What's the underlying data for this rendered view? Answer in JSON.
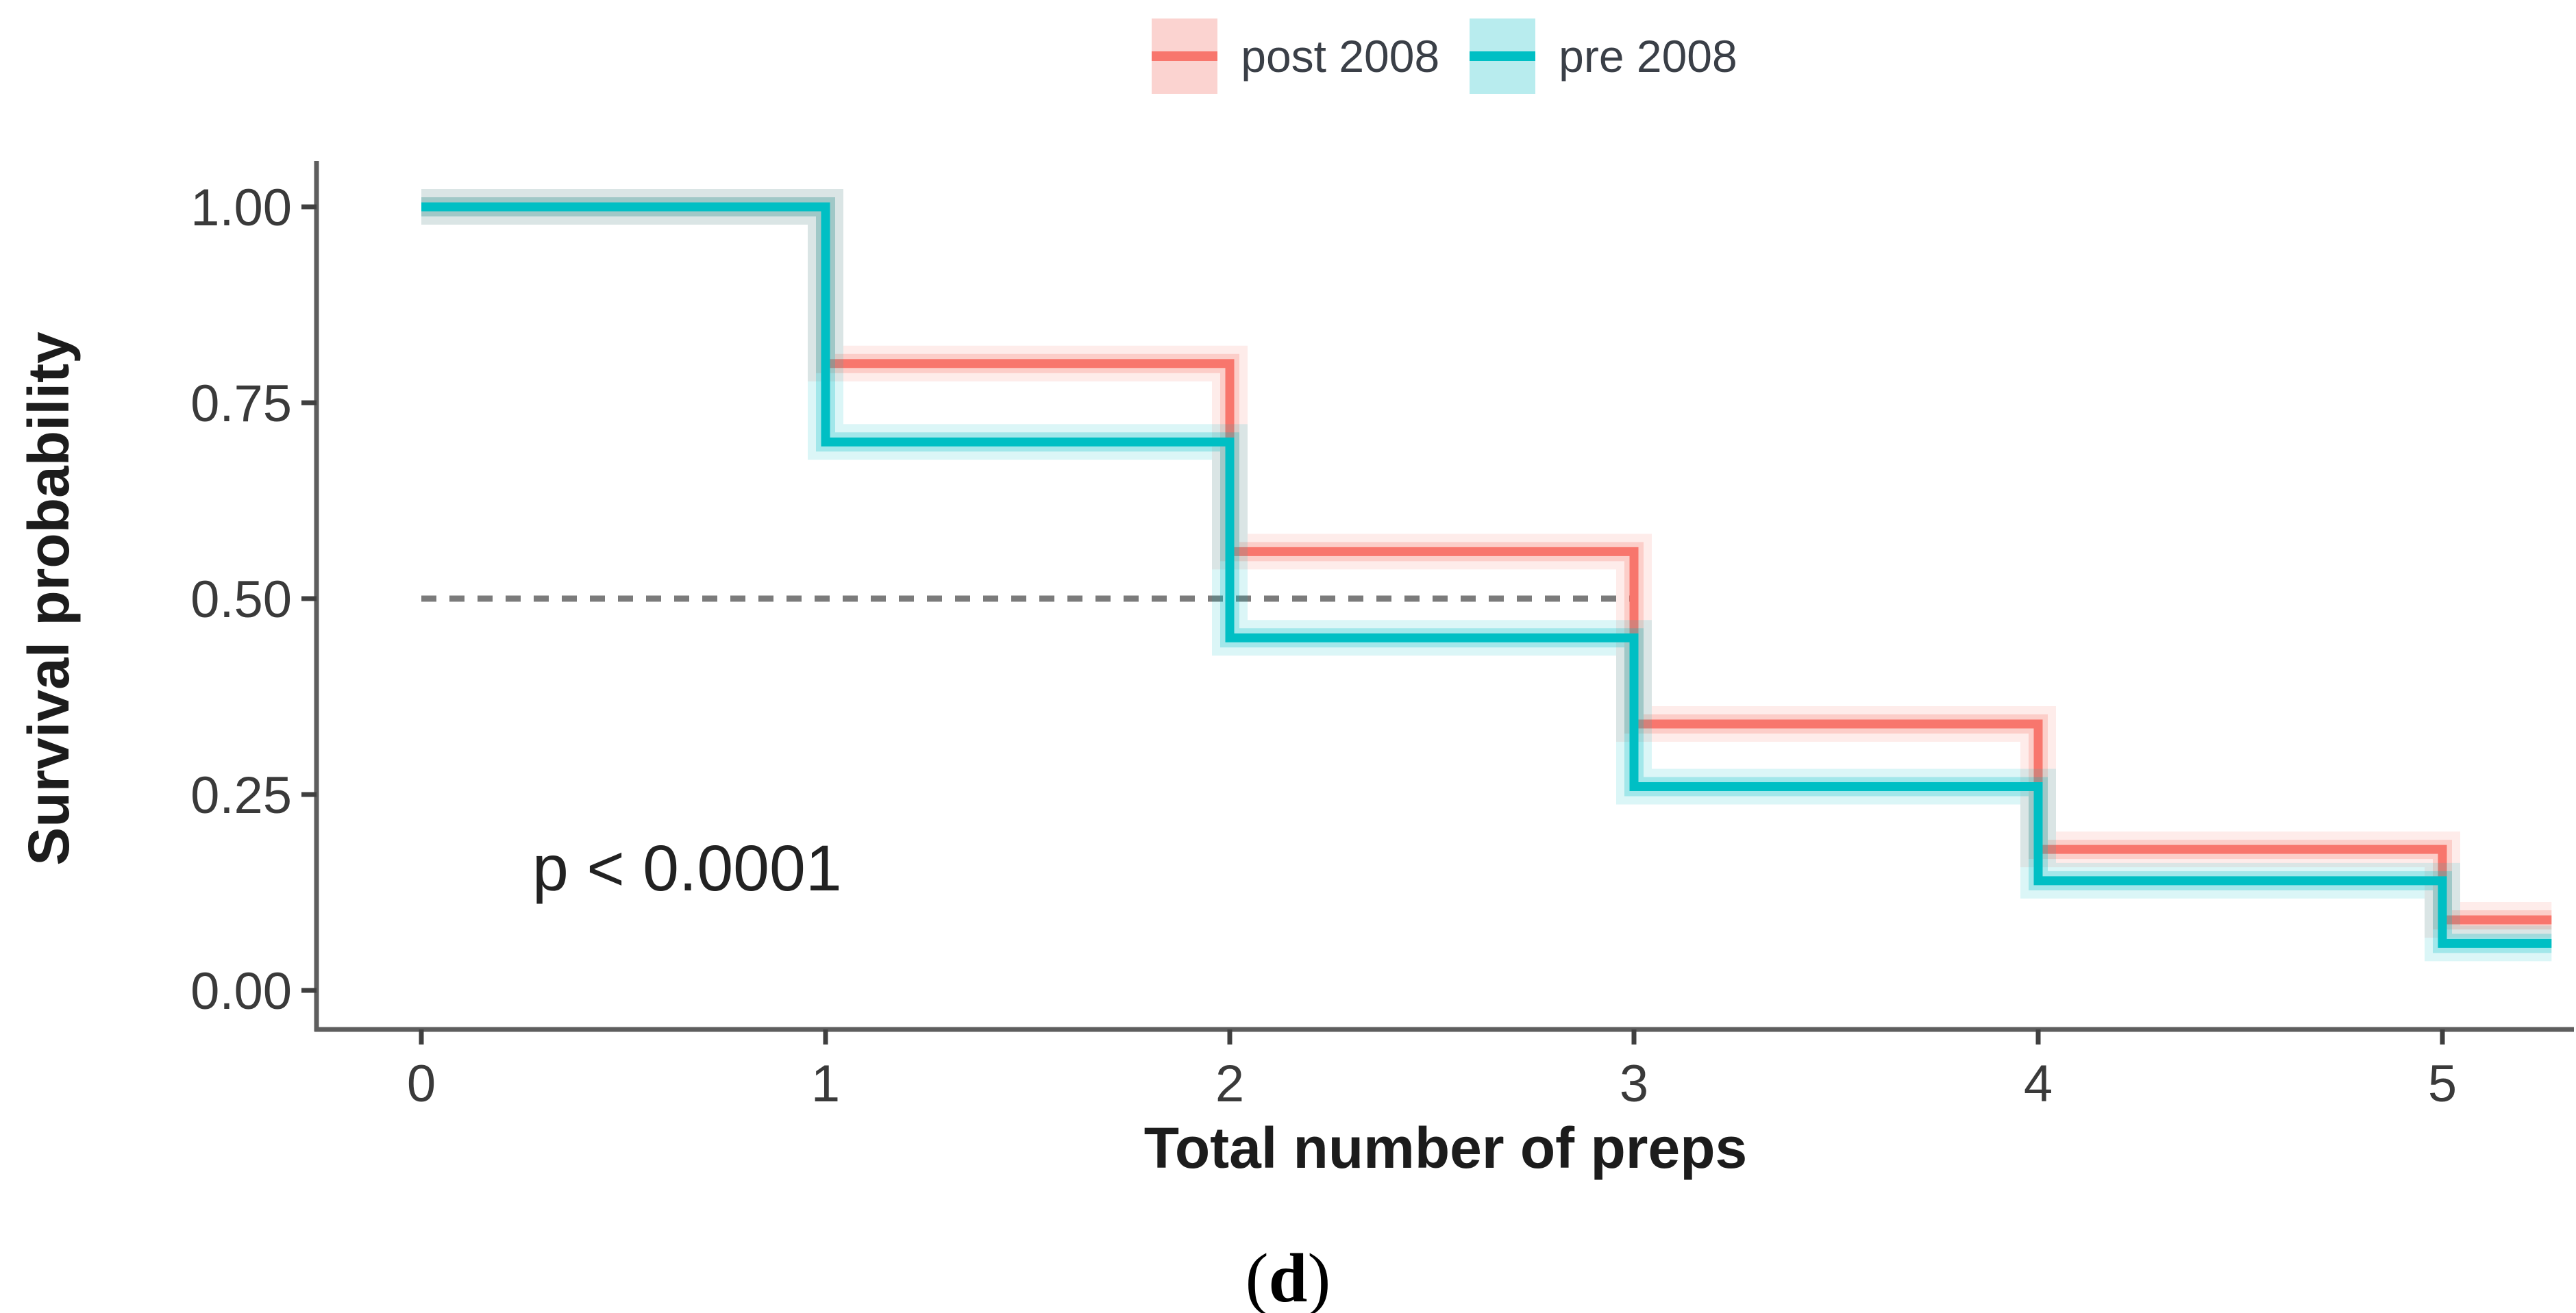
{
  "figure": {
    "caption_open": "(",
    "caption_letter": "d",
    "caption_close": ")"
  },
  "colors": {
    "post_2008": "#F8766D",
    "pre_2008": "#00BFC4",
    "post_2008_ribbon": "#FBD3D0",
    "pre_2008_ribbon": "#B8ECEE",
    "median_line": "#7b7b7b",
    "axis_line": "#5e5e5e",
    "tick_text": "#3a3a3a"
  },
  "chart_data": {
    "type": "line",
    "subtype": "kaplan-meier-step",
    "title": "",
    "xlabel": "Total number of preps",
    "ylabel": "Survival probability",
    "xlim": [
      0,
      5.33
    ],
    "ylim": [
      0,
      1
    ],
    "x_ticks": [
      0,
      1,
      2,
      3,
      4,
      5
    ],
    "x_tick_labels": [
      "0",
      "1",
      "2",
      "3",
      "4",
      "5"
    ],
    "y_ticks": [
      0,
      0.25,
      0.5,
      0.75,
      1
    ],
    "y_tick_labels": [
      "0.00",
      "0.25",
      "0.50",
      "0.75",
      "1.00"
    ],
    "grid": false,
    "legend_position": "top-center",
    "median_line": {
      "y": 0.5,
      "x_start": 0,
      "x_end": 3,
      "style": "dashed",
      "color": "#7b7b7b"
    },
    "series": [
      {
        "name": "post 2008",
        "color": "#F8766D",
        "ribbon_fill": "#FBD3D0",
        "step_x": [
          0,
          1,
          2,
          3,
          4,
          5,
          5.27
        ],
        "values": [
          1.0,
          0.8,
          0.56,
          0.34,
          0.18,
          0.09
        ]
      },
      {
        "name": "pre 2008",
        "color": "#00BFC4",
        "ribbon_fill": "#B8ECEE",
        "step_x": [
          0,
          1,
          2,
          3,
          4,
          5,
          5.27
        ],
        "values": [
          1.0,
          0.7,
          0.45,
          0.26,
          0.14,
          0.06
        ]
      }
    ],
    "annotation": {
      "text": "p < 0.0001",
      "x": 0.27,
      "y": 0.15
    }
  }
}
